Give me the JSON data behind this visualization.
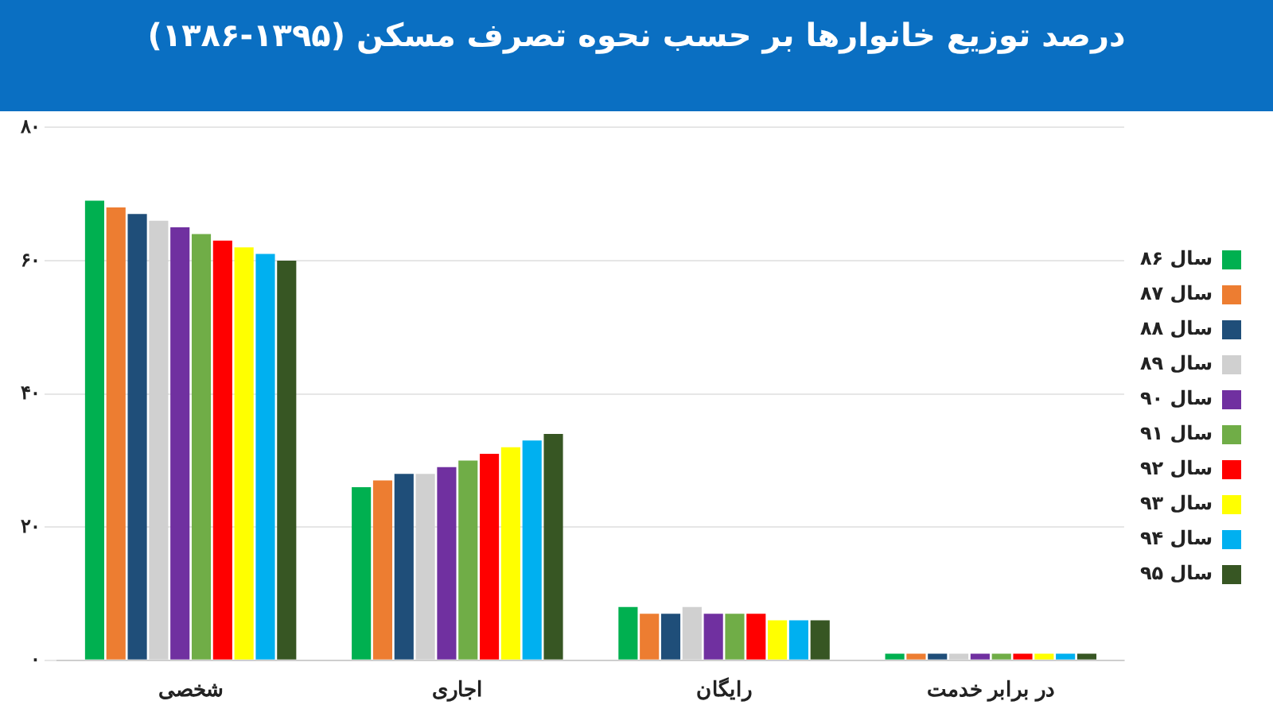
{
  "chart_data": {
    "type": "bar",
    "title": "درصد توزیع خانوارها بر حسب نحوه تصرف مسکن (۱۳۹۵-۱۳۸۶)",
    "categories": [
      "شخصی",
      "اجاری",
      "رایگان",
      "در برابر خدمت"
    ],
    "series": [
      {
        "name": "سال ۸۶",
        "color": "#00b050",
        "values": [
          69,
          26,
          8,
          1
        ]
      },
      {
        "name": "سال ۸۷",
        "color": "#ed7d31",
        "values": [
          68,
          27,
          7,
          1
        ]
      },
      {
        "name": "سال ۸۸",
        "color": "#1f4e79",
        "values": [
          67,
          28,
          7,
          1
        ]
      },
      {
        "name": "سال ۸۹",
        "color": "#d0d0d0",
        "values": [
          66,
          28,
          8,
          1
        ]
      },
      {
        "name": "سال ۹۰",
        "color": "#7030a0",
        "values": [
          65,
          29,
          7,
          1
        ]
      },
      {
        "name": "سال ۹۱",
        "color": "#70ad47",
        "values": [
          64,
          30,
          7,
          1
        ]
      },
      {
        "name": "سال ۹۲",
        "color": "#ff0000",
        "values": [
          63,
          31,
          7,
          1
        ]
      },
      {
        "name": "سال ۹۳",
        "color": "#ffff00",
        "values": [
          62,
          32,
          6,
          1
        ]
      },
      {
        "name": "سال ۹۴",
        "color": "#00b0f0",
        "values": [
          61,
          33,
          6,
          1
        ]
      },
      {
        "name": "سال ۹۵",
        "color": "#375623",
        "values": [
          60,
          34,
          6,
          1
        ]
      }
    ],
    "ylim": [
      0,
      80
    ],
    "yticks": [
      {
        "value": 0,
        "label": "۰"
      },
      {
        "value": 20,
        "label": "۲۰"
      },
      {
        "value": 40,
        "label": "۴۰"
      },
      {
        "value": 60,
        "label": "۶۰"
      },
      {
        "value": 80,
        "label": "۸۰"
      }
    ],
    "grid": "y",
    "legend": "right"
  }
}
